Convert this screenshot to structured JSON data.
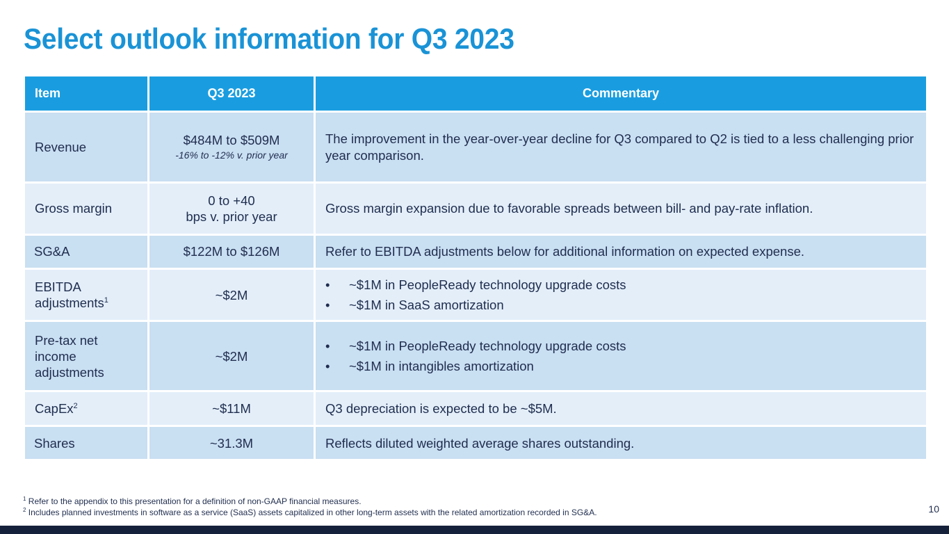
{
  "title": "Select outlook information for Q3 2023",
  "table": {
    "headers": [
      "Item",
      "Q3 2023",
      "Commentary"
    ],
    "rows": [
      {
        "item": "Revenue",
        "value": "$484M to $509M",
        "value_sub": "-16% to -12% v. prior year",
        "commentary": "The improvement in the year-over-year decline for Q3 compared to Q2 is tied to a less challenging prior year comparison."
      },
      {
        "item": "Gross margin",
        "value_line1": "0 to +40",
        "value_line2": "bps v. prior year",
        "commentary": "Gross margin expansion due to favorable spreads between bill- and pay-rate inflation."
      },
      {
        "item": "SG&A",
        "value": "$122M to $126M",
        "commentary": "Refer to EBITDA adjustments below for additional information on expected expense."
      },
      {
        "item_line1": "EBITDA",
        "item_line2": "adjustments",
        "footnote": "1",
        "value": "~$2M",
        "bullets": [
          "~$1M in PeopleReady technology upgrade costs",
          "~$1M in SaaS amortization"
        ]
      },
      {
        "item_line1": "Pre-tax net",
        "item_line2": "income",
        "item_line3": "adjustments",
        "value": "~$2M",
        "bullets": [
          "~$1M in PeopleReady technology upgrade costs",
          "~$1M in intangibles amortization"
        ]
      },
      {
        "item": "CapEx",
        "footnote": "2",
        "value": "~$11M",
        "commentary": "Q3 depreciation is expected to be ~$5M."
      },
      {
        "item": "Shares",
        "value": "~31.3M",
        "commentary": "Reflects diluted weighted average shares outstanding."
      }
    ]
  },
  "footnotes": [
    {
      "mark": "1",
      "text": "Refer to the appendix to this presentation for a definition of non-GAAP financial measures."
    },
    {
      "mark": "2",
      "text": "Includes planned investments in software as a service (SaaS) assets capitalized in other long-term assets with the related amortization recorded in SG&A."
    }
  ],
  "page_number": "10",
  "colors": {
    "title": "#1a93d6",
    "header_bg": "#1a9de0",
    "row_dark": "#c9dff2",
    "row_light": "#e3eef9",
    "text": "#1f2d4e",
    "bottom_bar": "#15213b"
  }
}
